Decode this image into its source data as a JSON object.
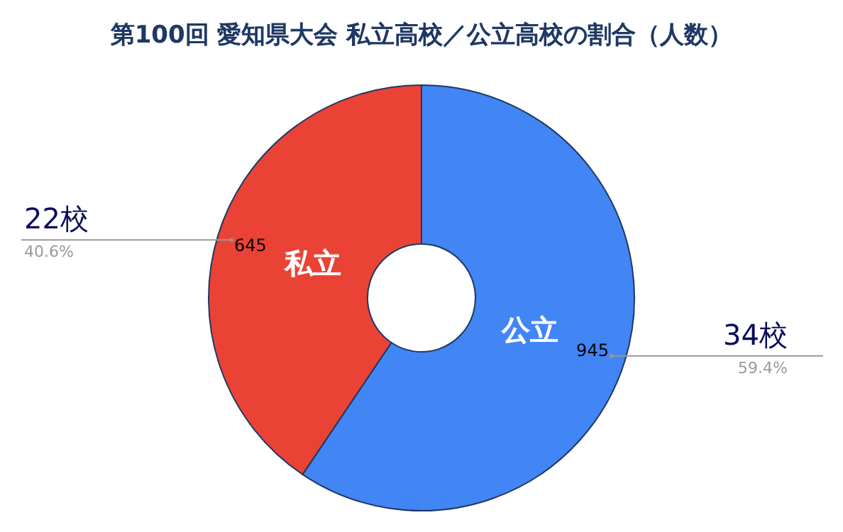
{
  "chart_data": {
    "type": "donut",
    "title": "第100回 愛知県大会 私立高校／公立高校の割合（人数）",
    "categories": [
      "公立",
      "私立"
    ],
    "values": [
      945,
      645
    ],
    "colors": [
      "#4285f4",
      "#ea4335"
    ],
    "data_labels": true,
    "legend": false,
    "annotations": [
      "34校",
      "59.4%",
      "22校",
      "40.6%"
    ]
  }
}
